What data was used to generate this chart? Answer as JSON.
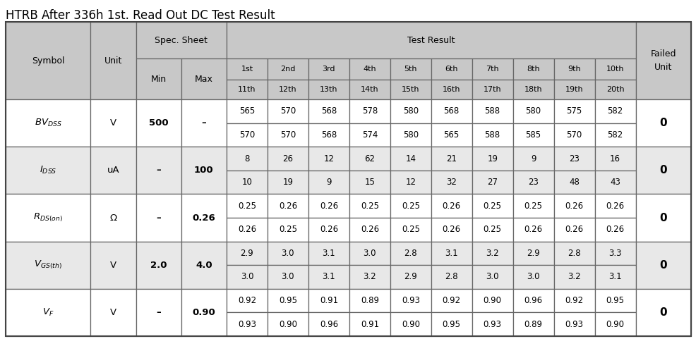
{
  "title": "HTRB After 336h 1st. Read Out DC Test Result",
  "title_fontsize": 12,
  "header_bg": "#c8c8c8",
  "alt_row_bg": "#e8e8e8",
  "white": "#ffffff",
  "border_color": "#666666",
  "symbol_latex": [
    "$BV_{DSS}$",
    "$I_{DSS}$",
    "$R_{DS(on)}$",
    "$V_{GS(th)}$",
    "$V_F$"
  ],
  "units": [
    "V",
    "uA",
    "Ω",
    "V",
    "V"
  ],
  "spec_min": [
    "500",
    "–",
    "–",
    "2.0",
    "–"
  ],
  "spec_max": [
    "–",
    "100",
    "0.26",
    "4.0",
    "0.90"
  ],
  "row1_data": [
    [
      "565",
      "570",
      "568",
      "578",
      "580",
      "568",
      "588",
      "580",
      "575",
      "582"
    ],
    [
      "8",
      "26",
      "12",
      "62",
      "14",
      "21",
      "19",
      "9",
      "23",
      "16"
    ],
    [
      "0.25",
      "0.26",
      "0.26",
      "0.25",
      "0.25",
      "0.26",
      "0.25",
      "0.25",
      "0.26",
      "0.26"
    ],
    [
      "2.9",
      "3.0",
      "3.1",
      "3.0",
      "2.8",
      "3.1",
      "3.2",
      "2.9",
      "2.8",
      "3.3"
    ],
    [
      "0.92",
      "0.95",
      "0.91",
      "0.89",
      "0.93",
      "0.92",
      "0.90",
      "0.96",
      "0.92",
      "0.95"
    ]
  ],
  "row2_data": [
    [
      "570",
      "570",
      "568",
      "574",
      "580",
      "565",
      "588",
      "585",
      "570",
      "582"
    ],
    [
      "10",
      "19",
      "9",
      "15",
      "12",
      "32",
      "27",
      "23",
      "48",
      "43"
    ],
    [
      "0.26",
      "0.25",
      "0.26",
      "0.26",
      "0.25",
      "0.26",
      "0.25",
      "0.26",
      "0.26",
      "0.26"
    ],
    [
      "3.0",
      "3.0",
      "3.1",
      "3.2",
      "2.9",
      "2.8",
      "3.0",
      "3.0",
      "3.2",
      "3.1"
    ],
    [
      "0.93",
      "0.90",
      "0.96",
      "0.91",
      "0.90",
      "0.95",
      "0.93",
      "0.89",
      "0.93",
      "0.90"
    ]
  ],
  "failed": [
    "0",
    "0",
    "0",
    "0",
    "0"
  ],
  "col_headers_row1": [
    "1st",
    "2nd",
    "3rd",
    "4th",
    "5th",
    "6th",
    "7th",
    "8th",
    "9th",
    "10th"
  ],
  "col_headers_row2": [
    "11th",
    "12th",
    "13th",
    "14th",
    "15th",
    "16th",
    "17th",
    "18th",
    "19th",
    "20th"
  ],
  "alt_rows": [
    false,
    true,
    false,
    true,
    false
  ]
}
